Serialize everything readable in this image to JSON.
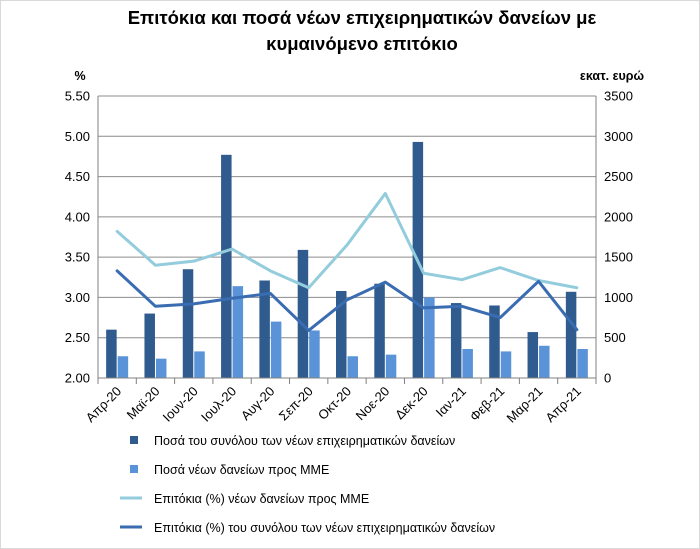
{
  "chart_data": {
    "type": "bar",
    "title_line1": "Επιτόκια και ποσά νέων επιχειρηματικών δανείων με",
    "title_line2": "κυμαινόμενο επιτόκιο",
    "left_axis_label": "%",
    "right_axis_label": "εκατ. ευρώ",
    "categories": [
      "Απρ-20",
      "Μαϊ-20",
      "Ιουν-20",
      "Ιουλ-20",
      "Αυγ-20",
      "Σεπ-20",
      "Οκτ-20",
      "Νοε-20",
      "Δεκ-20",
      "Ιαν-21",
      "Φεβ-21",
      "Μαρ-21",
      "Απρ-21"
    ],
    "left_axis": {
      "min": 2.0,
      "max": 5.5,
      "step": 0.5,
      "format": "fixed2"
    },
    "right_axis": {
      "min": 0,
      "max": 3500,
      "step": 500
    },
    "grid": "horizontal",
    "legend_position": "bottom",
    "series": [
      {
        "name": "Ποσά του συνόλου των νέων επιχειρηματικών δανείων",
        "kind": "bar",
        "axis": "right",
        "color": "#2f5b8e",
        "values": [
          600,
          800,
          1350,
          2770,
          1210,
          1590,
          1080,
          1170,
          2930,
          930,
          900,
          570,
          1070
        ]
      },
      {
        "name": "Ποσά νέων δανείων προς ΜΜΕ",
        "kind": "bar",
        "axis": "right",
        "color": "#5b93d9",
        "values": [
          270,
          240,
          330,
          1140,
          700,
          590,
          270,
          290,
          1000,
          360,
          330,
          400,
          360
        ]
      },
      {
        "name": "Επιτόκια (%) νέων δανείων προς ΜΜΕ",
        "kind": "line",
        "axis": "left",
        "color": "#93cddd",
        "values": [
          3.82,
          3.4,
          3.45,
          3.6,
          3.33,
          3.12,
          3.65,
          4.29,
          3.3,
          3.22,
          3.37,
          3.21,
          3.12
        ]
      },
      {
        "name": "Επιτόκια (%) του συνόλου των νέων επιχειρηματικών δανείων",
        "kind": "line",
        "axis": "left",
        "color": "#3a6cb2",
        "values": [
          3.33,
          2.89,
          2.92,
          2.99,
          3.05,
          2.59,
          2.97,
          3.19,
          2.87,
          2.89,
          2.75,
          3.2,
          2.6
        ]
      }
    ]
  }
}
